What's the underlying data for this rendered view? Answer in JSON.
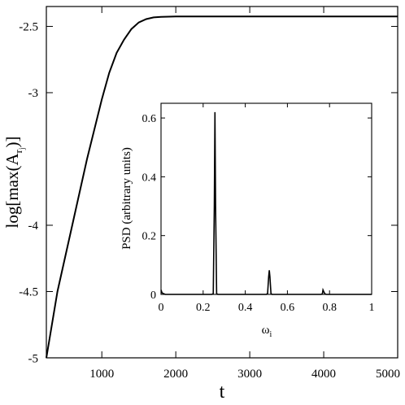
{
  "chart_data": [
    {
      "type": "line",
      "xlabel": "t",
      "ylabel": "log[max(A",
      "ylabel_sub": "r",
      "ylabel_subsub": "j",
      "ylabel_end": ")]",
      "xlim": [
        250,
        5000
      ],
      "ylim": [
        -5,
        -2.35
      ],
      "xticks": [
        1000,
        2000,
        3000,
        4000,
        5000
      ],
      "xtick_labels": [
        "1000",
        "2000",
        "3000",
        "4000",
        "5000"
      ],
      "yticks": [
        -5,
        -4.5,
        -4,
        -3,
        -2.5
      ],
      "ytick_labels": [
        "-5",
        "-4.5",
        "-4",
        "-3",
        "-2.5"
      ],
      "series": [
        {
          "x": [
            250,
            400,
            600,
            800,
            1000,
            1100,
            1200,
            1300,
            1400,
            1500,
            1600,
            1700,
            1800,
            2000,
            2500,
            3000,
            3500,
            4000,
            4500,
            5000
          ],
          "y": [
            -5.0,
            -4.5,
            -4.0,
            -3.5,
            -3.05,
            -2.85,
            -2.7,
            -2.6,
            -2.52,
            -2.47,
            -2.445,
            -2.432,
            -2.428,
            -2.425,
            -2.425,
            -2.425,
            -2.425,
            -2.425,
            -2.425,
            -2.425
          ]
        }
      ]
    },
    {
      "type": "line",
      "xlabel": "ω",
      "xlabel_sub": "i",
      "ylabel": "PSD (arbitrary units)",
      "xlim": [
        0,
        1
      ],
      "ylim": [
        0,
        0.65
      ],
      "xticks": [
        0,
        0.2,
        0.4,
        0.6,
        0.8,
        1
      ],
      "xtick_labels": [
        "0",
        "0.2",
        "0.4",
        "0.6",
        "0.8",
        "1"
      ],
      "yticks": [
        0,
        0.2,
        0.4,
        0.6
      ],
      "ytick_labels": [
        "0",
        "0.2",
        "0.4",
        "0.6"
      ],
      "series": [
        {
          "x": [
            0,
            0.005,
            0.02,
            0.24,
            0.248,
            0.253,
            0.256,
            0.259,
            0.264,
            0.27,
            0.5,
            0.506,
            0.511,
            0.514,
            0.517,
            0.522,
            0.527,
            0.76,
            0.766,
            0.769,
            0.772,
            0.778,
            0.784,
            1
          ],
          "y": [
            0.015,
            0.005,
            0,
            0,
            0.002,
            0.3,
            0.62,
            0.3,
            0.002,
            0,
            0,
            0.003,
            0.06,
            0.082,
            0.06,
            0.003,
            0,
            0,
            0.002,
            0.015,
            0.01,
            0.002,
            0,
            0
          ]
        }
      ]
    }
  ]
}
